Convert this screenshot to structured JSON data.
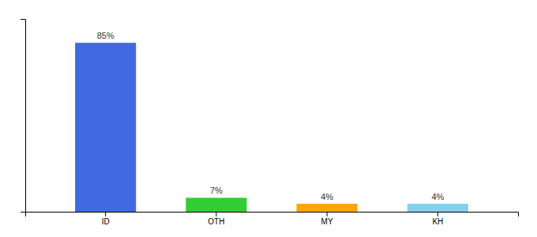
{
  "chart_data": {
    "type": "bar",
    "categories": [
      "ID",
      "OTH",
      "MY",
      "KH"
    ],
    "values": [
      85,
      7,
      4,
      4
    ],
    "value_labels": [
      "85%",
      "7%",
      "4%",
      "4%"
    ],
    "colors": [
      "#4169E1",
      "#32CD32",
      "#FFA500",
      "#87CEEB"
    ],
    "ylim": [
      0,
      97
    ],
    "data_labels": true,
    "tick_labels": "x"
  }
}
